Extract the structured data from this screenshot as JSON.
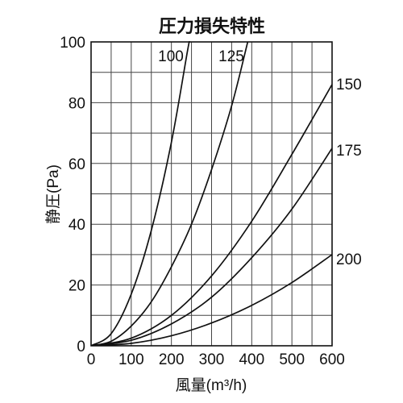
{
  "chart_data": {
    "type": "line",
    "title": "圧力損失特性",
    "xlabel": "風量(m³/h)",
    "ylabel": "静圧(Pa)",
    "xlim": [
      0,
      600
    ],
    "ylim": [
      0,
      100
    ],
    "x_ticks": [
      0,
      100,
      200,
      300,
      400,
      500,
      600
    ],
    "y_ticks": [
      0,
      20,
      40,
      60,
      80,
      100
    ],
    "grid": true,
    "legend": "labels-on-curves",
    "series": [
      {
        "name": "100",
        "points": [
          [
            0,
            0
          ],
          [
            50,
            4
          ],
          [
            100,
            17
          ],
          [
            150,
            38
          ],
          [
            200,
            67
          ],
          [
            240,
            97
          ],
          [
            245,
            100
          ]
        ]
      },
      {
        "name": "125",
        "points": [
          [
            0,
            0
          ],
          [
            50,
            1.5
          ],
          [
            100,
            6.5
          ],
          [
            150,
            14.5
          ],
          [
            200,
            26
          ],
          [
            250,
            40
          ],
          [
            300,
            58
          ],
          [
            350,
            79
          ],
          [
            390,
            100
          ]
        ]
      },
      {
        "name": "150",
        "points": [
          [
            0,
            0
          ],
          [
            100,
            2.5
          ],
          [
            200,
            10
          ],
          [
            300,
            23
          ],
          [
            400,
            41
          ],
          [
            500,
            63
          ],
          [
            600,
            86
          ]
        ]
      },
      {
        "name": "175",
        "points": [
          [
            0,
            0
          ],
          [
            100,
            1.8
          ],
          [
            200,
            7.2
          ],
          [
            300,
            16
          ],
          [
            400,
            29
          ],
          [
            500,
            45
          ],
          [
            600,
            65
          ]
        ]
      },
      {
        "name": "200",
        "points": [
          [
            0,
            0
          ],
          [
            100,
            0.8
          ],
          [
            200,
            3.3
          ],
          [
            300,
            7.5
          ],
          [
            400,
            13.3
          ],
          [
            500,
            20.8
          ],
          [
            600,
            30
          ]
        ]
      }
    ]
  }
}
